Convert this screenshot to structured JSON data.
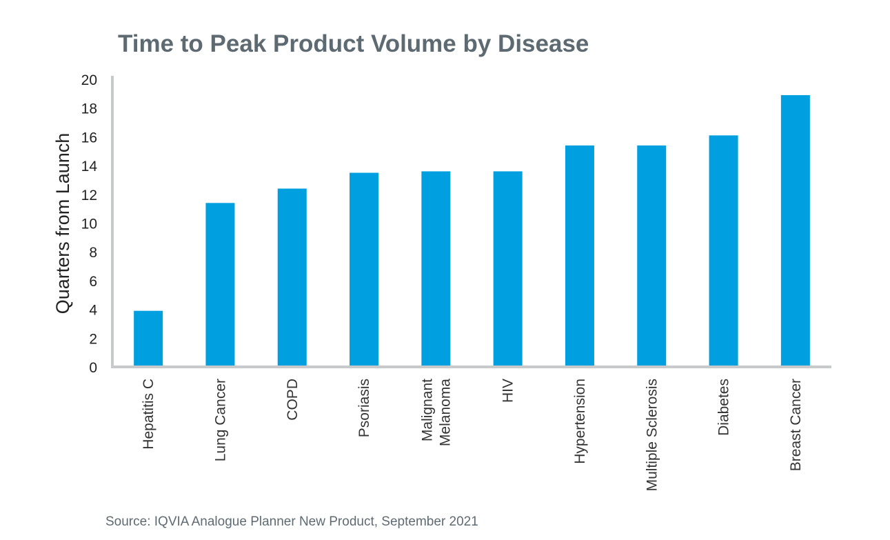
{
  "chart_data": {
    "type": "bar",
    "title": "Time to Peak Product Volume by Disease",
    "ylabel": "Quarters from Launch",
    "xlabel": "",
    "categories": [
      [
        "Hepatitis C"
      ],
      [
        "Lung Cancer"
      ],
      [
        "COPD"
      ],
      [
        "Psoriasis"
      ],
      [
        "Malignant",
        "Melanoma"
      ],
      [
        "HIV"
      ],
      [
        "Hypertension"
      ],
      [
        "Multiple Sclerosis"
      ],
      [
        "Diabetes"
      ],
      [
        "Breast Cancer"
      ]
    ],
    "values": [
      3.9,
      11.4,
      12.4,
      13.5,
      13.6,
      13.6,
      15.4,
      15.4,
      16.1,
      18.9
    ],
    "ylim": [
      0,
      20
    ],
    "yticks": [
      0,
      2,
      4,
      6,
      8,
      10,
      12,
      14,
      16,
      18,
      20
    ],
    "grid": false,
    "legend": "none",
    "bar_color": "#009fe0",
    "axis_color": "#c7c9cb",
    "source": "Source: IQVIA Analogue Planner New Product, September 2021"
  }
}
